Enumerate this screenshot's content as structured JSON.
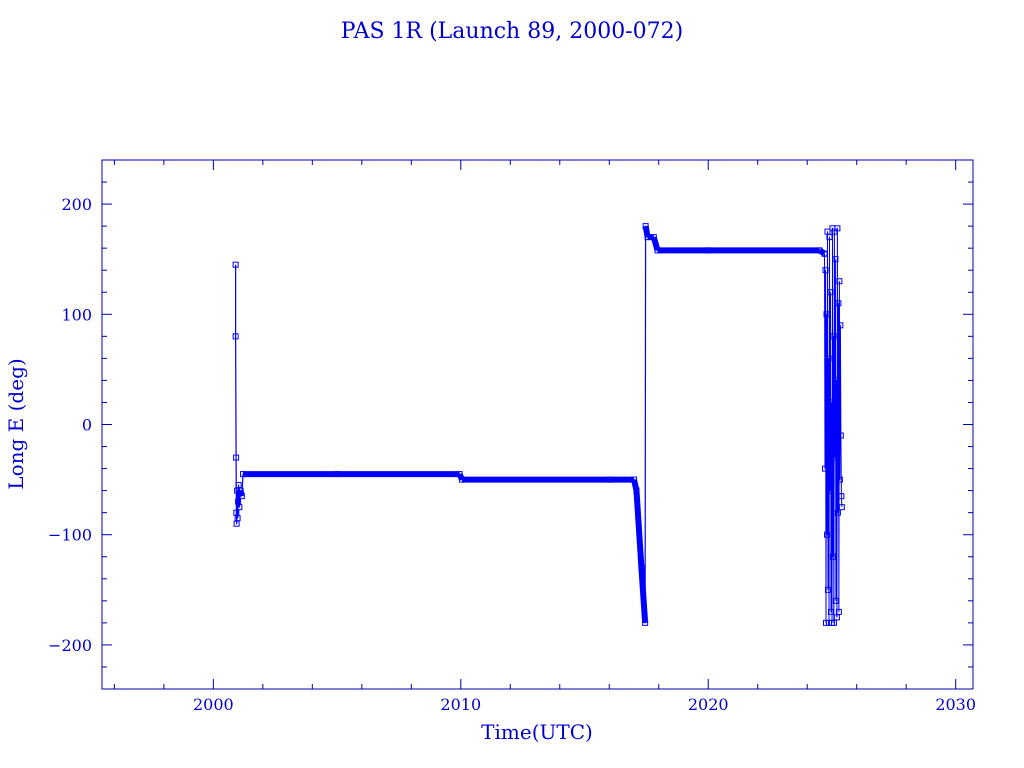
{
  "chart_data": {
    "type": "line",
    "title": "PAS 1R (Launch 89, 2000-072)",
    "xlabel": "Time(UTC)",
    "ylabel": "Long E (deg)",
    "xlim": [
      1995.5,
      2030.7
    ],
    "ylim": [
      -240,
      240
    ],
    "x_ticks": [
      2000,
      2010,
      2020,
      2030
    ],
    "y_ticks": [
      -200,
      -100,
      0,
      100,
      200
    ],
    "grid": false,
    "color": "#0000ff",
    "series": [
      {
        "values": [
          [
            2000.9,
            145
          ],
          [
            2000.9,
            80
          ],
          [
            2000.92,
            -30
          ],
          [
            2000.93,
            -80
          ],
          [
            2000.94,
            -90
          ],
          [
            2000.96,
            -60
          ],
          [
            2000.98,
            -85
          ],
          [
            2001.0,
            -70
          ],
          [
            2001.02,
            -55
          ],
          [
            2001.05,
            -75
          ],
          [
            2001.1,
            -60
          ],
          [
            2001.15,
            -65
          ],
          [
            2001.2,
            -45
          ],
          [
            2005.0,
            -45
          ],
          [
            2009.95,
            -45
          ],
          [
            2010.05,
            -50
          ],
          [
            2016.0,
            -50
          ],
          [
            2017.0,
            -50
          ],
          [
            2017.1,
            -60
          ],
          [
            2017.3,
            -130
          ],
          [
            2017.45,
            -180
          ],
          [
            2017.47,
            180
          ],
          [
            2017.55,
            170
          ],
          [
            2017.8,
            170
          ],
          [
            2017.95,
            158
          ],
          [
            2020.0,
            158
          ],
          [
            2024.5,
            158
          ],
          [
            2024.7,
            155
          ]
        ]
      },
      {
        "values": [
          [
            2024.7,
            155
          ],
          [
            2024.72,
            -40
          ],
          [
            2024.74,
            140
          ],
          [
            2024.76,
            -180
          ],
          [
            2024.78,
            100
          ],
          [
            2024.8,
            -100
          ],
          [
            2024.82,
            175
          ],
          [
            2024.84,
            -150
          ],
          [
            2024.86,
            60
          ],
          [
            2024.88,
            -180
          ],
          [
            2024.9,
            170
          ],
          [
            2024.92,
            -60
          ],
          [
            2024.94,
            120
          ],
          [
            2024.96,
            -170
          ],
          [
            2024.98,
            20
          ],
          [
            2025.0,
            -180
          ],
          [
            2025.02,
            178
          ],
          [
            2025.04,
            -120
          ],
          [
            2025.06,
            80
          ],
          [
            2025.08,
            -180
          ],
          [
            2025.1,
            175
          ],
          [
            2025.12,
            -30
          ],
          [
            2025.14,
            150
          ],
          [
            2025.16,
            -160
          ],
          [
            2025.18,
            40
          ],
          [
            2025.2,
            -175
          ],
          [
            2025.22,
            178
          ],
          [
            2025.24,
            -80
          ],
          [
            2025.26,
            110
          ],
          [
            2025.28,
            -170
          ],
          [
            2025.3,
            130
          ],
          [
            2025.32,
            -50
          ],
          [
            2025.34,
            90
          ],
          [
            2025.36,
            -10
          ],
          [
            2025.38,
            -65
          ],
          [
            2025.4,
            -75
          ]
        ]
      }
    ]
  }
}
